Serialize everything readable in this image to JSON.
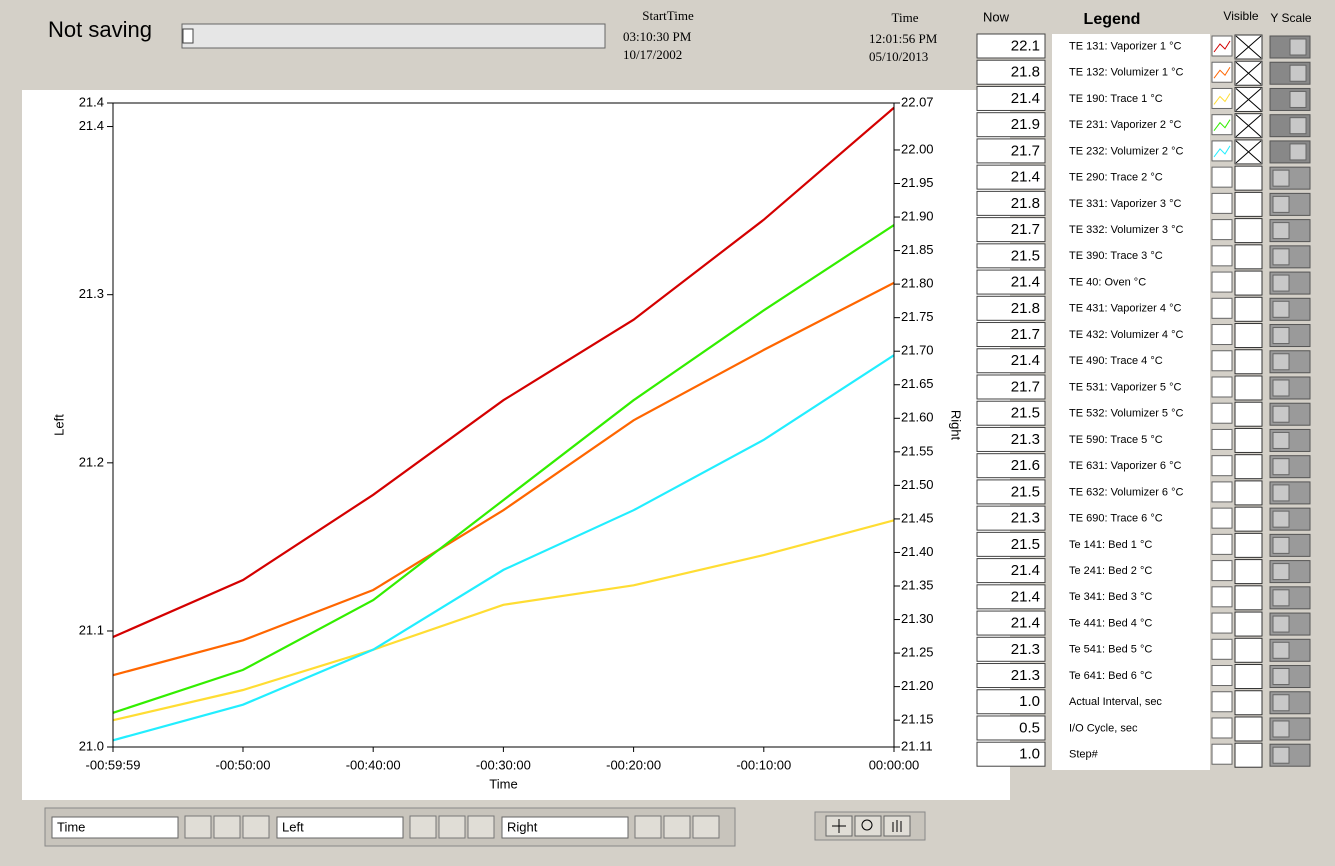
{
  "header": {
    "status": "Not saving",
    "start_time_label": "StartTime",
    "start_time": "03:10:30 PM",
    "start_date": "10/17/2002",
    "time_label": "Time",
    "time": "12:01:56 PM",
    "date": "05/10/2013"
  },
  "chart_data": {
    "type": "line",
    "x_label": "Time",
    "y_label": "Left",
    "y2_label": "Right",
    "x": [
      -3599,
      -3000,
      -2400,
      -1800,
      -1200,
      -600,
      0
    ],
    "xlim": [
      -3599,
      0
    ],
    "xticks": [
      {
        "value": -3599,
        "label": "-00:59:59"
      },
      {
        "value": -3000,
        "label": "-00:50:00"
      },
      {
        "value": -2400,
        "label": "-00:40:00"
      },
      {
        "value": -1800,
        "label": "-00:30:00"
      },
      {
        "value": -1200,
        "label": "-00:20:00"
      },
      {
        "value": -600,
        "label": "-00:10:00"
      },
      {
        "value": 0,
        "label": "00:00:00"
      }
    ],
    "ylim": [
      21.031,
      21.414
    ],
    "yticks": [
      {
        "value": 21.031,
        "label": "21.0"
      },
      21.1,
      21.2,
      21.3,
      21.4,
      {
        "value": 21.414,
        "label": "21.4"
      }
    ],
    "y2lim": [
      21.11,
      22.07
    ],
    "y2ticks": [
      21.11,
      21.15,
      {
        "value": 21.2,
        "label": "21.20"
      },
      21.25,
      {
        "value": 21.3,
        "label": "21.30"
      },
      21.35,
      {
        "value": 21.4,
        "label": "21.40"
      },
      21.45,
      {
        "value": 21.5,
        "label": "21.50"
      },
      21.55,
      {
        "value": 21.6,
        "label": "21.60"
      },
      21.65,
      {
        "value": 21.7,
        "label": "21.70"
      },
      21.75,
      {
        "value": 21.8,
        "label": "21.80"
      },
      21.85,
      {
        "value": 21.9,
        "label": "21.90"
      },
      21.95,
      {
        "value": 22,
        "label": "22.00"
      },
      22.07
    ],
    "series": [
      {
        "color": "#d40000",
        "axis": "y2",
        "values": [
          21.274,
          21.359,
          21.486,
          21.627,
          21.747,
          21.896,
          22.063
        ]
      },
      {
        "color": "#ff6600",
        "axis": "y2",
        "values": [
          21.217,
          21.269,
          21.344,
          21.463,
          21.597,
          21.702,
          21.802
        ]
      },
      {
        "color": "#ffdd33",
        "axis": "y2",
        "values": [
          21.15,
          21.195,
          21.255,
          21.322,
          21.351,
          21.396,
          21.448
        ]
      },
      {
        "color": "#33ee00",
        "axis": "y2",
        "values": [
          21.161,
          21.225,
          21.329,
          21.478,
          21.627,
          21.761,
          21.888
        ]
      },
      {
        "color": "#22eeff",
        "axis": "y2",
        "values": [
          21.12,
          21.173,
          21.255,
          21.374,
          21.463,
          21.568,
          21.694
        ]
      }
    ]
  },
  "legend": {
    "now_label": "Now",
    "title": "Legend",
    "visible_label": "Visible",
    "y_scale_label": "Y Scale",
    "rows": [
      {
        "now": "22.1",
        "name": "TE 131: Vaporizer 1 °C",
        "visible": true
      },
      {
        "now": "21.8",
        "name": "TE 132: Volumizer 1 °C",
        "visible": true
      },
      {
        "now": "21.4",
        "name": "TE 190: Trace 1 °C",
        "visible": true
      },
      {
        "now": "21.9",
        "name": "TE 231: Vaporizer 2 °C",
        "visible": true
      },
      {
        "now": "21.7",
        "name": "TE 232: Volumizer 2 °C",
        "visible": true
      },
      {
        "now": "21.4",
        "name": "TE 290: Trace 2 °C",
        "visible": false
      },
      {
        "now": "21.8",
        "name": "TE 331: Vaporizer 3 °C",
        "visible": false
      },
      {
        "now": "21.7",
        "name": "TE 332: Volumizer 3 °C",
        "visible": false
      },
      {
        "now": "21.5",
        "name": "TE 390: Trace 3 °C",
        "visible": false
      },
      {
        "now": "21.4",
        "name": "TE 40: Oven °C",
        "visible": false
      },
      {
        "now": "21.8",
        "name": "TE 431: Vaporizer 4 °C",
        "visible": false
      },
      {
        "now": "21.7",
        "name": "TE 432: Volumizer 4 °C",
        "visible": false
      },
      {
        "now": "21.4",
        "name": "TE 490: Trace 4 °C",
        "visible": false
      },
      {
        "now": "21.7",
        "name": "TE 531: Vaporizer 5 °C",
        "visible": false
      },
      {
        "now": "21.5",
        "name": "TE 532: Volumizer 5 °C",
        "visible": false
      },
      {
        "now": "21.3",
        "name": "TE 590: Trace 5 °C",
        "visible": false
      },
      {
        "now": "21.6",
        "name": "TE 631: Vaporizer 6 °C",
        "visible": false
      },
      {
        "now": "21.5",
        "name": "TE 632: Volumizer 6 °C",
        "visible": false
      },
      {
        "now": "21.3",
        "name": "TE 690: Trace 6 °C",
        "visible": false
      },
      {
        "now": "21.5",
        "name": "Te 141: Bed 1 °C",
        "visible": false
      },
      {
        "now": "21.4",
        "name": "Te 241: Bed 2 °C",
        "visible": false
      },
      {
        "now": "21.4",
        "name": "Te 341: Bed 3 °C",
        "visible": false
      },
      {
        "now": "21.4",
        "name": "Te 441: Bed 4 °C",
        "visible": false
      },
      {
        "now": "21.3",
        "name": "Te 541: Bed 5 °C",
        "visible": false
      },
      {
        "now": "21.3",
        "name": "Te 641: Bed 6 °C",
        "visible": false
      },
      {
        "now": "1.0",
        "name": "Actual Interval, sec",
        "visible": false
      },
      {
        "now": "0.5",
        "name": "I/O Cycle, sec",
        "visible": false
      },
      {
        "now": "1.0",
        "name": "Step#",
        "visible": false
      }
    ]
  },
  "toolbar": {
    "x_axis": "Time",
    "y_axis": "Left",
    "y2_axis": "Right"
  }
}
